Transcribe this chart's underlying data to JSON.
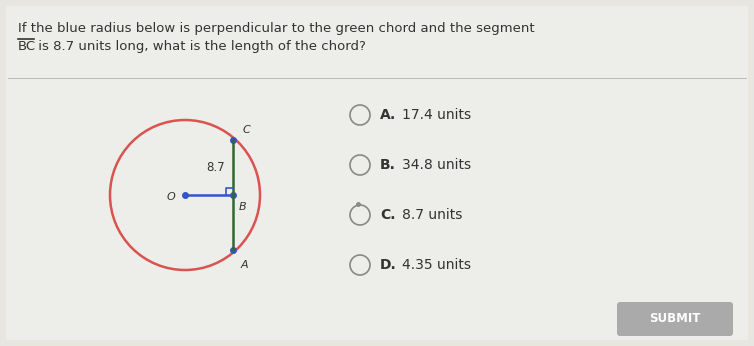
{
  "bg_color": "#e8e6e0",
  "panel_color": "#f0eeea",
  "question_line1": "If the blue radius below is perpendicular to the green chord and the segment",
  "question_line2_pre": "BC",
  "question_line2_post": " is 8.7 units long, what is the length of the chord?",
  "choices": [
    [
      "A.",
      "17.4 units"
    ],
    [
      "B.",
      "34.8 units"
    ],
    [
      "C.",
      "8.7 units"
    ],
    [
      "D.",
      "4.35 units"
    ]
  ],
  "circle_color": "#d9534f",
  "blue_color": "#3355cc",
  "green_color": "#336633",
  "text_color": "#333333",
  "radio_color": "#888888",
  "submit_bg": "#aaaaaa",
  "submit_text": "#ffffff"
}
